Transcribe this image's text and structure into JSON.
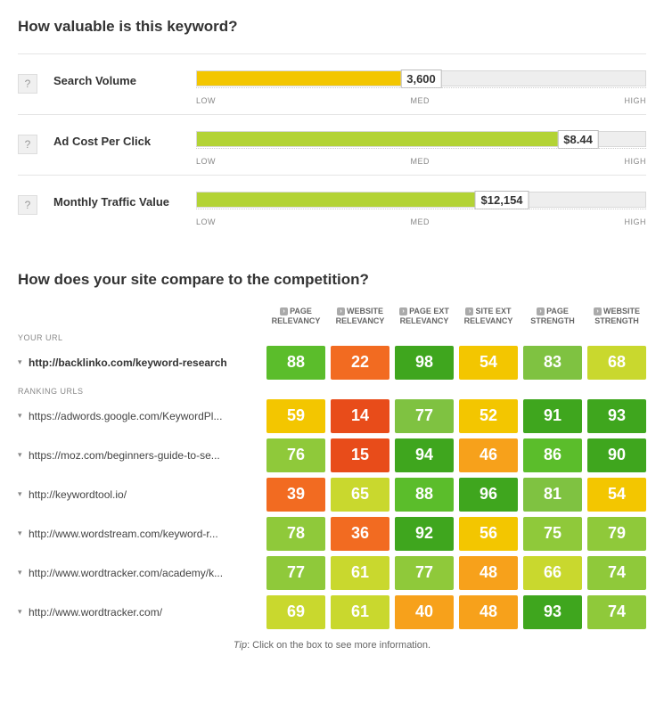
{
  "section1": {
    "title": "How valuable is this keyword?",
    "scale": {
      "low": "LOW",
      "med": "MED",
      "high": "HIGH"
    },
    "metrics": [
      {
        "label": "Search Volume",
        "value": "3,600",
        "fill_pct": 50,
        "color": "#f3c600"
      },
      {
        "label": "Ad Cost Per Click",
        "value": "$8.44",
        "fill_pct": 85,
        "color": "#b3d335"
      },
      {
        "label": "Monthly Traffic Value",
        "value": "$12,154",
        "fill_pct": 68,
        "color": "#b3d335"
      }
    ]
  },
  "section2": {
    "title": "How does your site compare to the competition?",
    "columns": [
      "PAGE RELEVANCY",
      "WEBSITE RELEVANCY",
      "PAGE EXT RELEVANCY",
      "SITE EXT RELEVANCY",
      "PAGE STRENGTH",
      "WEBSITE STRENGTH"
    ],
    "your_url_label": "YOUR URL",
    "ranking_label": "RANKING URLS",
    "tip_label": "Tip",
    "tip_text": ": Click on the box to see more information.",
    "your_row": {
      "url": "http://backlinko.com/keyword-research",
      "scores": [
        {
          "v": "88",
          "c": "#5bbd2b"
        },
        {
          "v": "22",
          "c": "#f26b21"
        },
        {
          "v": "98",
          "c": "#3fa61e"
        },
        {
          "v": "54",
          "c": "#f3c600"
        },
        {
          "v": "83",
          "c": "#7fc241"
        },
        {
          "v": "68",
          "c": "#c9d82e"
        }
      ]
    },
    "ranking_rows": [
      {
        "url": "https://adwords.google.com/KeywordPl...",
        "scores": [
          {
            "v": "59",
            "c": "#f3c600"
          },
          {
            "v": "14",
            "c": "#e84c1a"
          },
          {
            "v": "77",
            "c": "#7fc241"
          },
          {
            "v": "52",
            "c": "#f3c600"
          },
          {
            "v": "91",
            "c": "#3fa61e"
          },
          {
            "v": "93",
            "c": "#3fa61e"
          }
        ]
      },
      {
        "url": "https://moz.com/beginners-guide-to-se...",
        "scores": [
          {
            "v": "76",
            "c": "#8fc93a"
          },
          {
            "v": "15",
            "c": "#e84c1a"
          },
          {
            "v": "94",
            "c": "#3fa61e"
          },
          {
            "v": "46",
            "c": "#f7a11b"
          },
          {
            "v": "86",
            "c": "#5bbd2b"
          },
          {
            "v": "90",
            "c": "#3fa61e"
          }
        ]
      },
      {
        "url": "http://keywordtool.io/",
        "scores": [
          {
            "v": "39",
            "c": "#f26b21"
          },
          {
            "v": "65",
            "c": "#c9d82e"
          },
          {
            "v": "88",
            "c": "#5bbd2b"
          },
          {
            "v": "96",
            "c": "#3fa61e"
          },
          {
            "v": "81",
            "c": "#7fc241"
          },
          {
            "v": "54",
            "c": "#f3c600"
          }
        ]
      },
      {
        "url": "http://www.wordstream.com/keyword-r...",
        "scores": [
          {
            "v": "78",
            "c": "#8fc93a"
          },
          {
            "v": "36",
            "c": "#f26b21"
          },
          {
            "v": "92",
            "c": "#3fa61e"
          },
          {
            "v": "56",
            "c": "#f3c600"
          },
          {
            "v": "75",
            "c": "#8fc93a"
          },
          {
            "v": "79",
            "c": "#8fc93a"
          }
        ]
      },
      {
        "url": "http://www.wordtracker.com/academy/k...",
        "scores": [
          {
            "v": "77",
            "c": "#8fc93a"
          },
          {
            "v": "61",
            "c": "#c9d82e"
          },
          {
            "v": "77",
            "c": "#8fc93a"
          },
          {
            "v": "48",
            "c": "#f7a11b"
          },
          {
            "v": "66",
            "c": "#c9d82e"
          },
          {
            "v": "74",
            "c": "#8fc93a"
          }
        ]
      },
      {
        "url": "http://www.wordtracker.com/",
        "scores": [
          {
            "v": "69",
            "c": "#c9d82e"
          },
          {
            "v": "61",
            "c": "#c9d82e"
          },
          {
            "v": "40",
            "c": "#f7a11b"
          },
          {
            "v": "48",
            "c": "#f7a11b"
          },
          {
            "v": "93",
            "c": "#3fa61e"
          },
          {
            "v": "74",
            "c": "#8fc93a"
          }
        ]
      }
    ]
  }
}
